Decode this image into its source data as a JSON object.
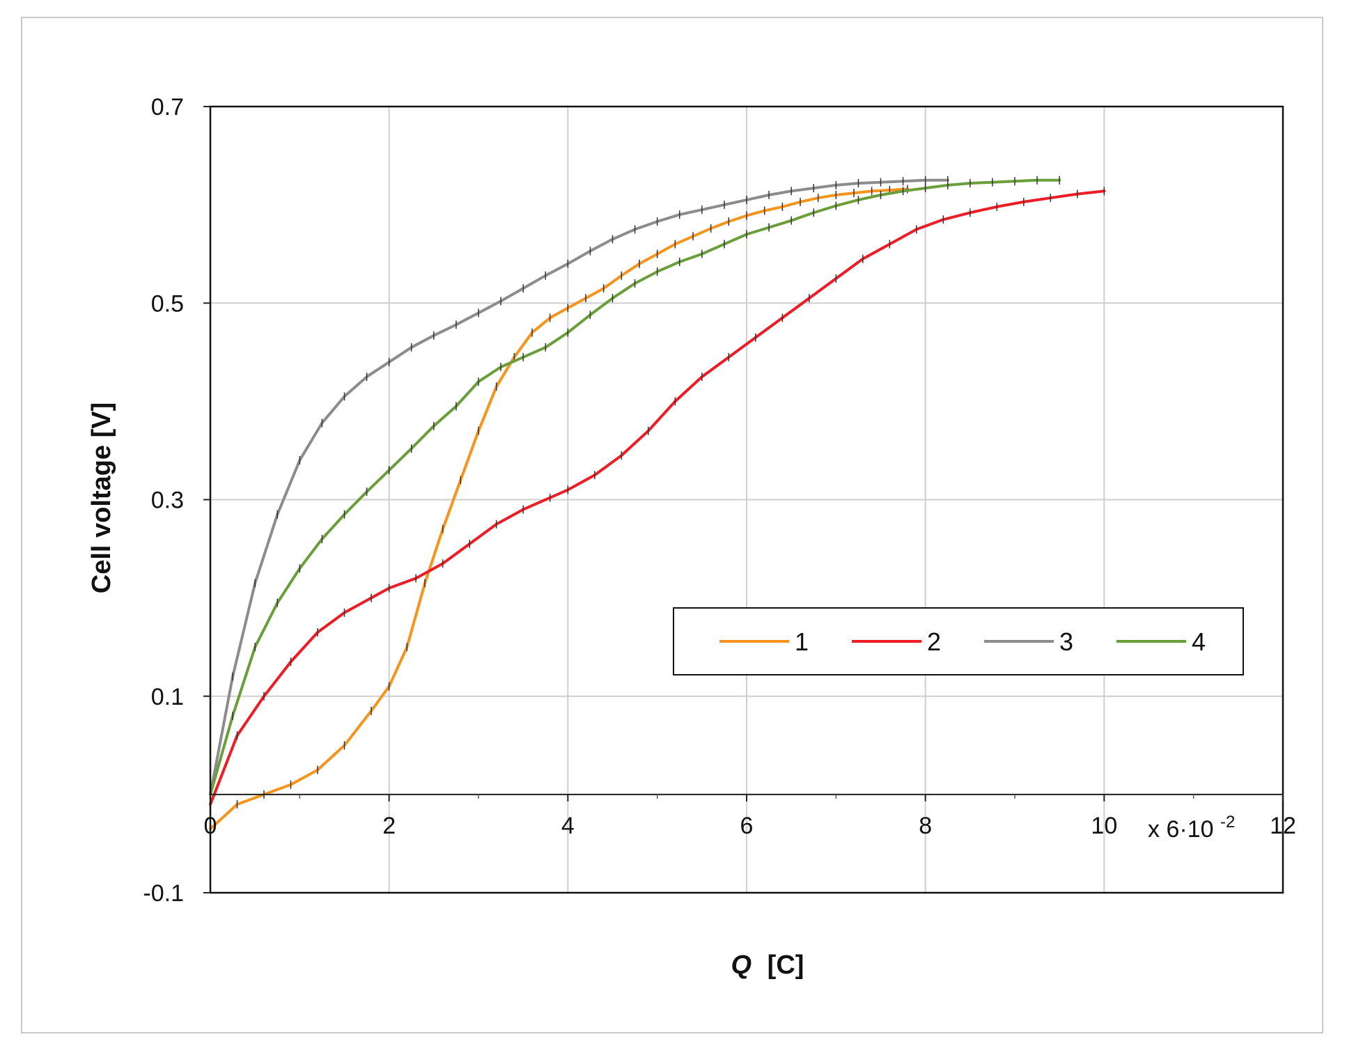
{
  "chart_data": {
    "type": "line",
    "title": "",
    "xlabel_italic": "Q",
    "xlabel_unit": "[C]",
    "ylabel": "Cell voltage [V]",
    "x_multiplier_label": "x 6·10",
    "x_multiplier_exponent": "-2",
    "xlim": [
      0,
      12
    ],
    "ylim": [
      -0.1,
      0.7
    ],
    "x_axis_crosses_y_at": 0,
    "xticks": [
      0,
      2,
      4,
      6,
      8,
      10,
      12
    ],
    "xtick_labels": [
      "0",
      "2",
      "4",
      "6",
      "8",
      "10",
      "12"
    ],
    "yticks": [
      -0.1,
      0.1,
      0.3,
      0.5,
      0.7
    ],
    "ytick_labels": [
      "-0.1",
      "0.1",
      "0.3",
      "0.5",
      "0.7"
    ],
    "grid": true,
    "legend_placement": "lower-right",
    "series": [
      {
        "name": "1",
        "color": "#f7941d",
        "points": [
          [
            0,
            -0.035
          ],
          [
            0.3,
            -0.01
          ],
          [
            0.6,
            0.0
          ],
          [
            0.9,
            0.01
          ],
          [
            1.2,
            0.025
          ],
          [
            1.5,
            0.05
          ],
          [
            1.8,
            0.085
          ],
          [
            2.0,
            0.11
          ],
          [
            2.2,
            0.15
          ],
          [
            2.4,
            0.215
          ],
          [
            2.6,
            0.27
          ],
          [
            2.8,
            0.32
          ],
          [
            3.0,
            0.37
          ],
          [
            3.2,
            0.415
          ],
          [
            3.4,
            0.445
          ],
          [
            3.6,
            0.47
          ],
          [
            3.8,
            0.485
          ],
          [
            4.0,
            0.495
          ],
          [
            4.2,
            0.505
          ],
          [
            4.4,
            0.515
          ],
          [
            4.6,
            0.528
          ],
          [
            4.8,
            0.54
          ],
          [
            5.0,
            0.55
          ],
          [
            5.2,
            0.56
          ],
          [
            5.4,
            0.568
          ],
          [
            5.6,
            0.576
          ],
          [
            5.8,
            0.583
          ],
          [
            6.0,
            0.589
          ],
          [
            6.2,
            0.594
          ],
          [
            6.4,
            0.598
          ],
          [
            6.6,
            0.603
          ],
          [
            6.8,
            0.607
          ],
          [
            7.0,
            0.61
          ],
          [
            7.2,
            0.612
          ],
          [
            7.4,
            0.614
          ],
          [
            7.6,
            0.615
          ],
          [
            7.8,
            0.616
          ]
        ]
      },
      {
        "name": "2",
        "color": "#ee1c25",
        "points": [
          [
            0,
            -0.01
          ],
          [
            0.3,
            0.06
          ],
          [
            0.6,
            0.1
          ],
          [
            0.9,
            0.135
          ],
          [
            1.2,
            0.165
          ],
          [
            1.5,
            0.185
          ],
          [
            1.8,
            0.2
          ],
          [
            2.0,
            0.21
          ],
          [
            2.3,
            0.22
          ],
          [
            2.6,
            0.235
          ],
          [
            2.9,
            0.255
          ],
          [
            3.2,
            0.275
          ],
          [
            3.5,
            0.29
          ],
          [
            3.8,
            0.302
          ],
          [
            4.0,
            0.31
          ],
          [
            4.3,
            0.325
          ],
          [
            4.6,
            0.345
          ],
          [
            4.9,
            0.37
          ],
          [
            5.2,
            0.4
          ],
          [
            5.5,
            0.425
          ],
          [
            5.8,
            0.445
          ],
          [
            6.1,
            0.465
          ],
          [
            6.4,
            0.485
          ],
          [
            6.7,
            0.505
          ],
          [
            7.0,
            0.525
          ],
          [
            7.3,
            0.545
          ],
          [
            7.6,
            0.56
          ],
          [
            7.9,
            0.575
          ],
          [
            8.2,
            0.585
          ],
          [
            8.5,
            0.592
          ],
          [
            8.8,
            0.598
          ],
          [
            9.1,
            0.603
          ],
          [
            9.4,
            0.607
          ],
          [
            9.7,
            0.611
          ],
          [
            10.0,
            0.614
          ]
        ]
      },
      {
        "name": "3",
        "color": "#8c8c8c",
        "points": [
          [
            0,
            0.0
          ],
          [
            0.25,
            0.12
          ],
          [
            0.5,
            0.215
          ],
          [
            0.75,
            0.285
          ],
          [
            1.0,
            0.34
          ],
          [
            1.25,
            0.378
          ],
          [
            1.5,
            0.405
          ],
          [
            1.75,
            0.425
          ],
          [
            2.0,
            0.44
          ],
          [
            2.25,
            0.455
          ],
          [
            2.5,
            0.467
          ],
          [
            2.75,
            0.478
          ],
          [
            3.0,
            0.49
          ],
          [
            3.25,
            0.502
          ],
          [
            3.5,
            0.515
          ],
          [
            3.75,
            0.528
          ],
          [
            4.0,
            0.54
          ],
          [
            4.25,
            0.553
          ],
          [
            4.5,
            0.565
          ],
          [
            4.75,
            0.575
          ],
          [
            5.0,
            0.583
          ],
          [
            5.25,
            0.59
          ],
          [
            5.5,
            0.595
          ],
          [
            5.75,
            0.6
          ],
          [
            6.0,
            0.605
          ],
          [
            6.25,
            0.61
          ],
          [
            6.5,
            0.614
          ],
          [
            6.75,
            0.617
          ],
          [
            7.0,
            0.62
          ],
          [
            7.25,
            0.622
          ],
          [
            7.5,
            0.623
          ],
          [
            7.75,
            0.624
          ],
          [
            8.0,
            0.625
          ],
          [
            8.25,
            0.625
          ]
        ]
      },
      {
        "name": "4",
        "color": "#6a9e3a",
        "points": [
          [
            0,
            0.0
          ],
          [
            0.25,
            0.08
          ],
          [
            0.5,
            0.15
          ],
          [
            0.75,
            0.195
          ],
          [
            1.0,
            0.23
          ],
          [
            1.25,
            0.26
          ],
          [
            1.5,
            0.285
          ],
          [
            1.75,
            0.308
          ],
          [
            2.0,
            0.33
          ],
          [
            2.25,
            0.352
          ],
          [
            2.5,
            0.375
          ],
          [
            2.75,
            0.395
          ],
          [
            3.0,
            0.42
          ],
          [
            3.25,
            0.435
          ],
          [
            3.5,
            0.445
          ],
          [
            3.75,
            0.455
          ],
          [
            4.0,
            0.47
          ],
          [
            4.25,
            0.488
          ],
          [
            4.5,
            0.505
          ],
          [
            4.75,
            0.52
          ],
          [
            5.0,
            0.532
          ],
          [
            5.25,
            0.542
          ],
          [
            5.5,
            0.55
          ],
          [
            5.75,
            0.56
          ],
          [
            6.0,
            0.57
          ],
          [
            6.25,
            0.577
          ],
          [
            6.5,
            0.584
          ],
          [
            6.75,
            0.592
          ],
          [
            7.0,
            0.599
          ],
          [
            7.25,
            0.605
          ],
          [
            7.5,
            0.61
          ],
          [
            7.75,
            0.614
          ],
          [
            8.0,
            0.617
          ],
          [
            8.25,
            0.62
          ],
          [
            8.5,
            0.622
          ],
          [
            8.75,
            0.623
          ],
          [
            9.0,
            0.624
          ],
          [
            9.25,
            0.625
          ],
          [
            9.5,
            0.625
          ]
        ]
      }
    ]
  }
}
